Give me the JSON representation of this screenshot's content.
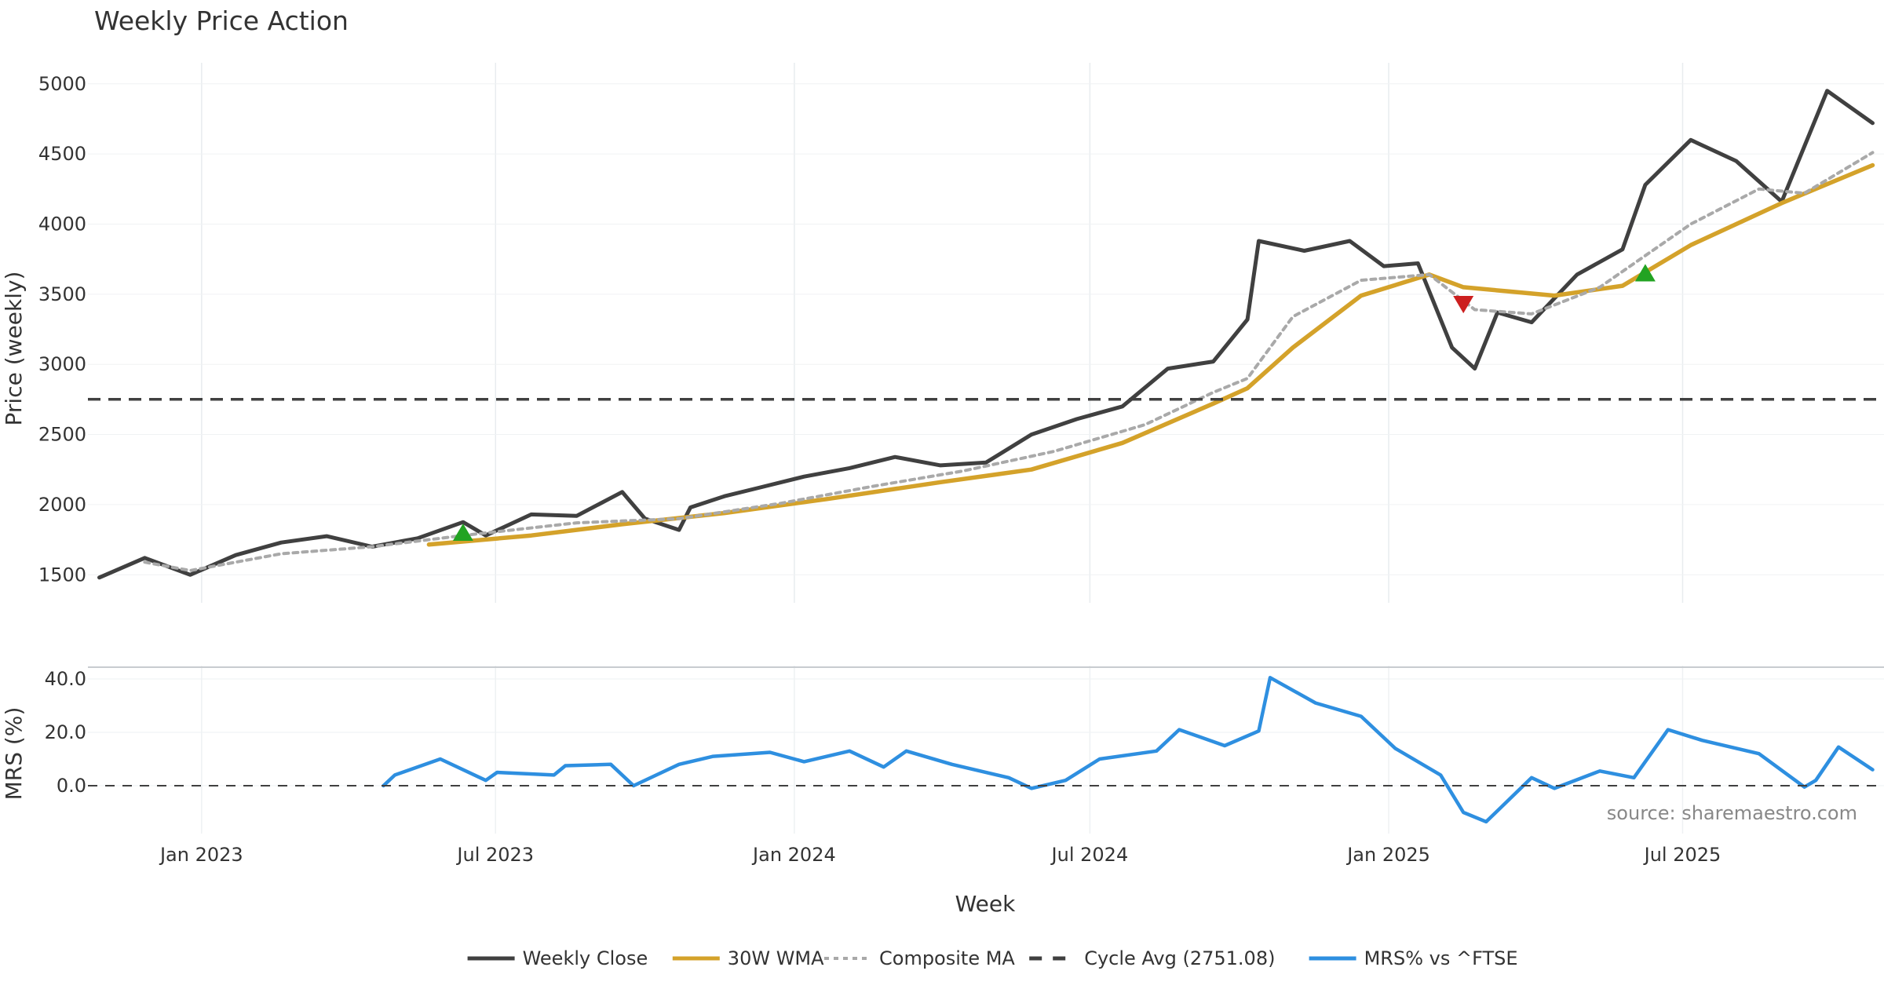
{
  "chart_data": [
    {
      "type": "line",
      "title": "Weekly Price Action",
      "ylabel": "Price (weekly)",
      "ylim": [
        1300,
        5150
      ],
      "yticks": [
        1500,
        2000,
        2500,
        3000,
        3500,
        4000,
        4500,
        5000
      ],
      "grid": true,
      "x_start": "2022-10-30",
      "x_end": "2025-10-26",
      "xlim": [
        "2022-10-23",
        "2025-11-02"
      ],
      "series": [
        {
          "name": "Weekly Close",
          "color": "#404040",
          "style": "solid",
          "points": [
            [
              "2022-10-30",
              1480
            ],
            [
              "2022-11-27",
              1620
            ],
            [
              "2022-12-25",
              1500
            ],
            [
              "2023-01-22",
              1640
            ],
            [
              "2023-02-19",
              1730
            ],
            [
              "2023-03-19",
              1775
            ],
            [
              "2023-04-16",
              1700
            ],
            [
              "2023-05-14",
              1760
            ],
            [
              "2023-06-11",
              1875
            ],
            [
              "2023-06-25",
              1780
            ],
            [
              "2023-07-23",
              1930
            ],
            [
              "2023-08-20",
              1920
            ],
            [
              "2023-09-17",
              2090
            ],
            [
              "2023-10-01",
              1900
            ],
            [
              "2023-10-22",
              1820
            ],
            [
              "2023-10-29",
              1980
            ],
            [
              "2023-11-19",
              2060
            ],
            [
              "2023-12-10",
              2120
            ],
            [
              "2024-01-07",
              2200
            ],
            [
              "2024-02-04",
              2260
            ],
            [
              "2024-03-03",
              2340
            ],
            [
              "2024-03-31",
              2280
            ],
            [
              "2024-04-28",
              2300
            ],
            [
              "2024-05-26",
              2500
            ],
            [
              "2024-06-23",
              2610
            ],
            [
              "2024-07-21",
              2700
            ],
            [
              "2024-08-18",
              2970
            ],
            [
              "2024-09-15",
              3020
            ],
            [
              "2024-10-06",
              3320
            ],
            [
              "2024-10-13",
              3880
            ],
            [
              "2024-11-10",
              3810
            ],
            [
              "2024-12-08",
              3880
            ],
            [
              "2024-12-29",
              3700
            ],
            [
              "2025-01-19",
              3720
            ],
            [
              "2025-02-09",
              3120
            ],
            [
              "2025-02-23",
              2970
            ],
            [
              "2025-03-09",
              3370
            ],
            [
              "2025-03-30",
              3300
            ],
            [
              "2025-04-27",
              3640
            ],
            [
              "2025-05-25",
              3820
            ],
            [
              "2025-06-08",
              4280
            ],
            [
              "2025-07-06",
              4600
            ],
            [
              "2025-08-03",
              4450
            ],
            [
              "2025-08-31",
              4160
            ],
            [
              "2025-09-28",
              4950
            ],
            [
              "2025-10-26",
              4720
            ]
          ]
        },
        {
          "name": "30W WMA",
          "color": "#d4a22a",
          "style": "solid",
          "points": [
            [
              "2023-05-21",
              1715
            ],
            [
              "2023-07-23",
              1780
            ],
            [
              "2023-09-17",
              1860
            ],
            [
              "2023-11-19",
              1940
            ],
            [
              "2024-01-21",
              2040
            ],
            [
              "2024-03-31",
              2160
            ],
            [
              "2024-05-26",
              2250
            ],
            [
              "2024-07-21",
              2440
            ],
            [
              "2024-09-15",
              2720
            ],
            [
              "2024-10-06",
              2830
            ],
            [
              "2024-11-03",
              3120
            ],
            [
              "2024-12-15",
              3490
            ],
            [
              "2025-01-26",
              3640
            ],
            [
              "2025-02-16",
              3550
            ],
            [
              "2025-03-16",
              3520
            ],
            [
              "2025-04-13",
              3490
            ],
            [
              "2025-05-25",
              3560
            ],
            [
              "2025-07-06",
              3850
            ],
            [
              "2025-08-31",
              4150
            ],
            [
              "2025-10-26",
              4420
            ]
          ]
        },
        {
          "name": "Composite MA",
          "color": "#a9a9a9",
          "style": "dotted",
          "points": [
            [
              "2022-11-27",
              1590
            ],
            [
              "2022-12-25",
              1530
            ],
            [
              "2023-02-19",
              1650
            ],
            [
              "2023-04-16",
              1700
            ],
            [
              "2023-06-11",
              1780
            ],
            [
              "2023-08-20",
              1870
            ],
            [
              "2023-10-22",
              1900
            ],
            [
              "2023-12-24",
              2010
            ],
            [
              "2024-02-18",
              2130
            ],
            [
              "2024-04-14",
              2240
            ],
            [
              "2024-06-09",
              2380
            ],
            [
              "2024-08-04",
              2570
            ],
            [
              "2024-09-15",
              2800
            ],
            [
              "2024-10-06",
              2900
            ],
            [
              "2024-11-03",
              3340
            ],
            [
              "2024-12-15",
              3600
            ],
            [
              "2025-01-26",
              3640
            ],
            [
              "2025-02-23",
              3390
            ],
            [
              "2025-03-30",
              3360
            ],
            [
              "2025-05-11",
              3550
            ],
            [
              "2025-07-06",
              4000
            ],
            [
              "2025-08-17",
              4250
            ],
            [
              "2025-09-14",
              4220
            ],
            [
              "2025-10-26",
              4510
            ]
          ]
        },
        {
          "name": "Cycle Avg (2751.08)",
          "color": "#404040",
          "style": "dashed",
          "value": 2751.08
        }
      ],
      "markers": [
        {
          "type": "buy",
          "date": "2023-06-11",
          "value": 1800,
          "color": "#22a322"
        },
        {
          "type": "sell",
          "date": "2025-02-16",
          "value": 3430,
          "color": "#cc1f1f"
        },
        {
          "type": "buy",
          "date": "2025-06-08",
          "value": 3650,
          "color": "#22a322"
        }
      ]
    },
    {
      "type": "line",
      "xlabel": "Week",
      "ylabel": "MRS (%)",
      "ylim": [
        -15,
        45
      ],
      "yticks": [
        "0.0",
        "20.0",
        "40.0"
      ],
      "x_tick_labels": [
        "Jan 2023",
        "Jul 2023",
        "Jan 2024",
        "Jul 2024",
        "Jan 2025",
        "Jul 2025"
      ],
      "x_tick_dates": [
        "2023-01-01",
        "2023-07-01",
        "2024-01-01",
        "2024-07-01",
        "2025-01-01",
        "2025-07-01"
      ],
      "series": [
        {
          "name": "MRS% vs ^FTSE",
          "color": "#2e8fe0",
          "style": "solid",
          "points": [
            [
              "2023-04-23",
              0
            ],
            [
              "2023-04-30",
              4
            ],
            [
              "2023-05-28",
              10
            ],
            [
              "2023-06-25",
              2
            ],
            [
              "2023-07-02",
              5
            ],
            [
              "2023-08-06",
              4
            ],
            [
              "2023-08-13",
              7.5
            ],
            [
              "2023-09-10",
              8
            ],
            [
              "2023-09-24",
              0
            ],
            [
              "2023-10-22",
              8
            ],
            [
              "2023-11-12",
              11
            ],
            [
              "2023-12-17",
              12.5
            ],
            [
              "2024-01-07",
              9
            ],
            [
              "2024-02-04",
              13
            ],
            [
              "2024-02-25",
              7
            ],
            [
              "2024-03-10",
              13
            ],
            [
              "2024-04-07",
              8
            ],
            [
              "2024-05-12",
              3
            ],
            [
              "2024-05-26",
              -1
            ],
            [
              "2024-06-16",
              2
            ],
            [
              "2024-07-07",
              10
            ],
            [
              "2024-08-11",
              13
            ],
            [
              "2024-08-25",
              21
            ],
            [
              "2024-09-22",
              15
            ],
            [
              "2024-10-13",
              20.5
            ],
            [
              "2024-10-20",
              40.5
            ],
            [
              "2024-11-17",
              31
            ],
            [
              "2024-12-15",
              26
            ],
            [
              "2025-01-05",
              14
            ],
            [
              "2025-02-02",
              4
            ],
            [
              "2025-02-16",
              -10
            ],
            [
              "2025-03-02",
              -13.5
            ],
            [
              "2025-03-30",
              3
            ],
            [
              "2025-04-13",
              -1
            ],
            [
              "2025-05-11",
              5.5
            ],
            [
              "2025-06-01",
              3
            ],
            [
              "2025-06-22",
              21
            ],
            [
              "2025-07-13",
              17
            ],
            [
              "2025-08-17",
              12
            ],
            [
              "2025-09-14",
              -0.5
            ],
            [
              "2025-09-21",
              2
            ],
            [
              "2025-10-05",
              14.5
            ],
            [
              "2025-10-26",
              6
            ]
          ]
        },
        {
          "name": "zero-line",
          "color": "#404040",
          "style": "dashed",
          "value": 0
        }
      ]
    }
  ],
  "legend": {
    "position": "bottom-center",
    "items": [
      {
        "label": "Weekly Close",
        "color": "#404040",
        "style": "solid"
      },
      {
        "label": "30W WMA",
        "color": "#d4a22a",
        "style": "solid"
      },
      {
        "label": "Composite MA",
        "color": "#a9a9a9",
        "style": "dotted"
      },
      {
        "label": "Cycle Avg (2751.08)",
        "color": "#404040",
        "style": "dashed"
      },
      {
        "label": "MRS% vs ^FTSE",
        "color": "#2e8fe0",
        "style": "solid"
      }
    ]
  },
  "source_note": "source: sharemaestro.com"
}
